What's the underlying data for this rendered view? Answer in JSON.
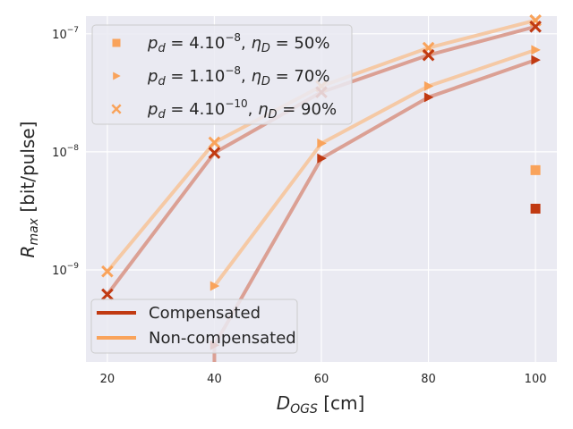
{
  "chart_data": {
    "type": "line",
    "yscale": "log",
    "title": "",
    "xlabel_main": "D",
    "xlabel_sub": "OGS",
    "xlabel_unit": " [cm]",
    "ylabel_main": "R",
    "ylabel_sub": "max",
    "ylabel_unit": " [bit/pulse]",
    "xlim": [
      16,
      104
    ],
    "ylim_log10": [
      -9.78,
      -6.85
    ],
    "xticks": [
      20,
      40,
      60,
      80,
      100
    ],
    "yticks": [
      {
        "value": 1e-09,
        "base": "10",
        "exp": "−9"
      },
      {
        "value": 1e-08,
        "base": "10",
        "exp": "−8"
      },
      {
        "value": 1e-07,
        "base": "10",
        "exp": "−7"
      }
    ],
    "colors": {
      "compensated": "#c13a12",
      "non_compensated": "#f9a35b",
      "compensated_line": "#dba094",
      "non_compensated_line": "#f5c9a5",
      "background": "#eaeaf2",
      "grid": "#ffffff"
    },
    "series": [
      {
        "name": "pd=4e-8, eta=50%",
        "marker": "square",
        "mode": "compensated",
        "x": [
          100
        ],
        "y": [
          3.3e-09
        ]
      },
      {
        "name": "pd=4e-8, eta=50%",
        "marker": "square",
        "mode": "non_compensated",
        "x": [
          100
        ],
        "y": [
          7e-09
        ]
      },
      {
        "name": "pd=1e-8, eta=70%",
        "marker": "triangle",
        "mode": "compensated",
        "x": [
          40,
          60,
          80,
          100
        ],
        "y": [
          2.3e-10,
          8.8e-09,
          2.9e-08,
          6e-08
        ]
      },
      {
        "name": "pd=1e-8, eta=70%",
        "marker": "triangle",
        "mode": "non_compensated",
        "x": [
          40,
          60,
          80,
          100
        ],
        "y": [
          7.3e-10,
          1.18e-08,
          3.6e-08,
          7.3e-08
        ]
      },
      {
        "name": "pd=4e-10, eta=90%",
        "marker": "x",
        "mode": "compensated",
        "x": [
          20,
          40,
          60,
          80,
          100
        ],
        "y": [
          6.2e-10,
          9.8e-09,
          3.2e-08,
          6.6e-08,
          1.15e-07
        ]
      },
      {
        "name": "pd=4e-10, eta=90%",
        "marker": "x",
        "mode": "non_compensated",
        "x": [
          20,
          40,
          60,
          80,
          100
        ],
        "y": [
          9.7e-10,
          1.2e-08,
          3.6e-08,
          7.6e-08,
          1.3e-07
        ]
      }
    ],
    "legend_markers": {
      "placement": "top-left",
      "entries": [
        {
          "marker": "square",
          "pd_base": "4.10",
          "pd_exp": "−8",
          "eta": "50%"
        },
        {
          "marker": "triangle",
          "pd_base": "1.10",
          "pd_exp": "−8",
          "eta": "70%"
        },
        {
          "marker": "x",
          "pd_base": "4.10",
          "pd_exp": "−10",
          "eta": "90%"
        }
      ]
    },
    "legend_lines": {
      "placement": "bottom-left",
      "entries": [
        {
          "label": "Compensated",
          "mode": "compensated"
        },
        {
          "label": "Non-compensated",
          "mode": "non_compensated"
        }
      ]
    }
  }
}
